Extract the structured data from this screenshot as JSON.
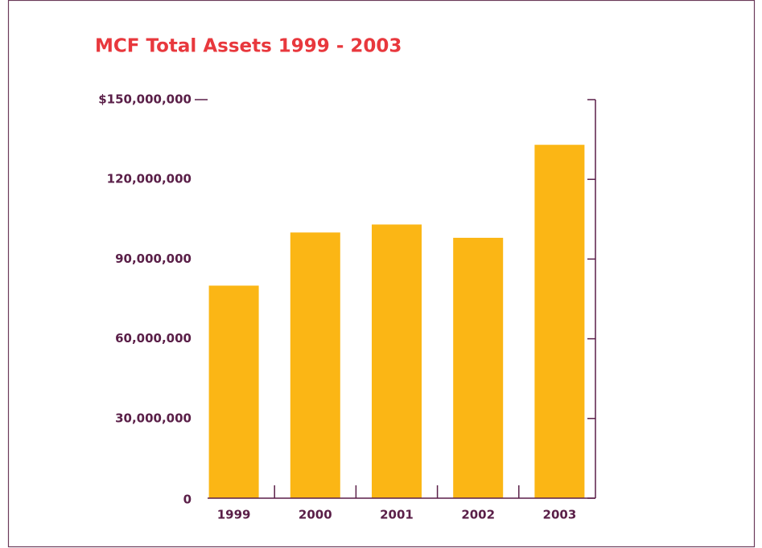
{
  "chart_data": {
    "type": "bar",
    "title": "MCF Total Assets 1999 - 2003",
    "categories": [
      "1999",
      "2000",
      "2001",
      "2002",
      "2003"
    ],
    "values": [
      80000000,
      100000000,
      103000000,
      98000000,
      133000000
    ],
    "color": "#fbb615",
    "ylim": [
      0,
      150000000
    ],
    "yticks": [
      0,
      {
        "value": 30000000,
        "label": "30,000,000"
      },
      {
        "value": 60000000,
        "label": "60,000,000"
      },
      {
        "value": 90000000,
        "label": "90,000,000"
      },
      {
        "value": 120000000,
        "label": "120,000,000"
      },
      {
        "value": 150000000,
        "label": "$150,000,000"
      }
    ]
  }
}
